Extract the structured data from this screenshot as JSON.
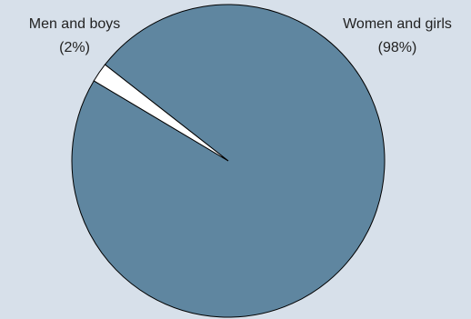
{
  "chart_data": {
    "type": "pie",
    "slices": [
      {
        "label": "Women and girls",
        "value_label": "(98%)",
        "value": 98,
        "color": "#5f86a0"
      },
      {
        "label": "Men and boys",
        "value_label": "(2%)",
        "value": 2,
        "color": "#ffffff"
      }
    ],
    "background": "#d7e0ea",
    "outline_color": "#000000"
  }
}
